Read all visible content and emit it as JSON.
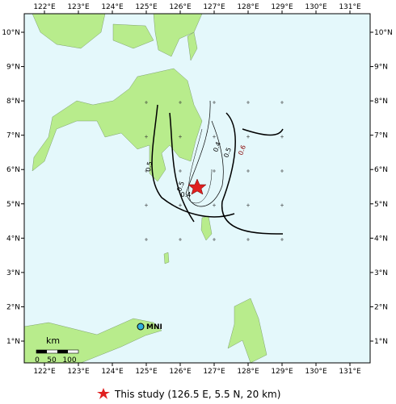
{
  "map": {
    "lon_ticks": [
      {
        "value": 122,
        "label": "122°E"
      },
      {
        "value": 123,
        "label": "123°E"
      },
      {
        "value": 124,
        "label": "124°E"
      },
      {
        "value": 125,
        "label": "125°E"
      },
      {
        "value": 126,
        "label": "126°E"
      },
      {
        "value": 127,
        "label": "127°E"
      },
      {
        "value": 128,
        "label": "128°E"
      },
      {
        "value": 129,
        "label": "129°E"
      },
      {
        "value": 130,
        "label": "130°E"
      },
      {
        "value": 131,
        "label": "131°E"
      }
    ],
    "lat_ticks": [
      {
        "value": 1,
        "label": "1°N"
      },
      {
        "value": 2,
        "label": "2°N"
      },
      {
        "value": 3,
        "label": "3°N"
      },
      {
        "value": 4,
        "label": "4°N"
      },
      {
        "value": 5,
        "label": "5°N"
      },
      {
        "value": 6,
        "label": "6°N"
      },
      {
        "value": 7,
        "label": "7°N"
      },
      {
        "value": 8,
        "label": "8°N"
      },
      {
        "value": 9,
        "label": "9°N"
      },
      {
        "value": 10,
        "label": "10°N"
      }
    ],
    "contour_labels": [
      "0.5",
      "0.4",
      "0.5",
      "0.6",
      "0.4",
      "0.5"
    ],
    "scale_unit": "km",
    "scale_labels": [
      "0",
      "50",
      "100"
    ],
    "station": "MNI",
    "legend": "This study (126.5 E, 5.5 N, 20 km)"
  }
}
